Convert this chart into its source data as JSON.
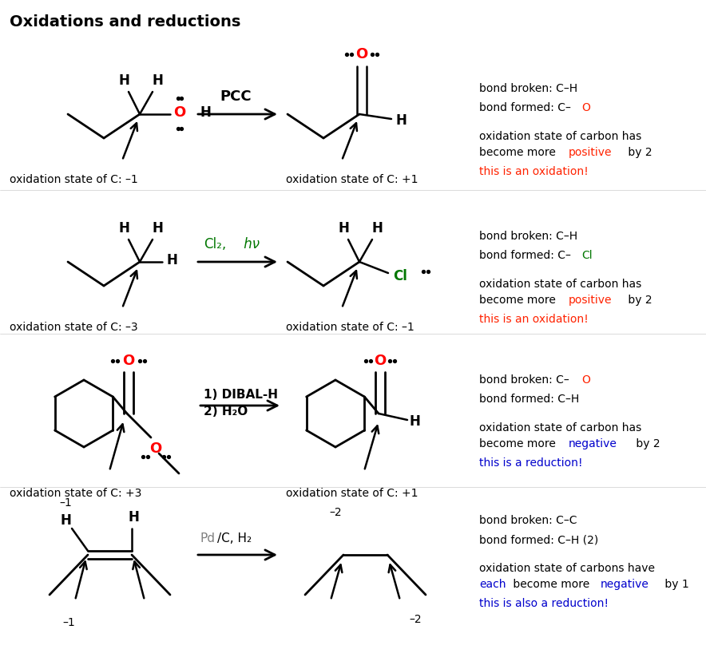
{
  "title": "Oxidations and reductions",
  "title_fontsize": 14,
  "title_fontweight": "bold",
  "background_color": "#ffffff",
  "text_color": "#000000",
  "red_color": "#ff2200",
  "green_color": "#007700",
  "blue_color": "#0000cc",
  "rows": [
    {
      "left_label": "oxidation state of C: –1",
      "right_label": "oxidation state of C: +1",
      "reagent1": "PCC",
      "reagent1_bold": true,
      "reagent1_color": "#000000",
      "bb_text": "bond broken: C–H",
      "bf_prefix": "bond formed: C–",
      "bf_suffix": "O",
      "bf_suffix_color": "#ff2200",
      "desc1": "oxidation state of carbon has",
      "desc2_prefix": "become more ",
      "desc2_word": "positive",
      "desc2_word_color": "#ff2200",
      "desc2_suffix": " by 2",
      "conclusion": "this is an oxidation!",
      "conclusion_color": "#ff2200"
    },
    {
      "left_label": "oxidation state of C: –3",
      "right_label": "oxidation state of C: –1",
      "reagent1": "Cl₂,",
      "reagent1_color": "#007700",
      "reagent1_bold": false,
      "reagent2": "hν",
      "reagent2_italic": true,
      "reagent2_color": "#007700",
      "bb_text": "bond broken: C–H",
      "bf_prefix": "bond formed: C–",
      "bf_suffix": "Cl",
      "bf_suffix_color": "#007700",
      "desc1": "oxidation state of carbon has",
      "desc2_prefix": "become more ",
      "desc2_word": "positive",
      "desc2_word_color": "#ff2200",
      "desc2_suffix": " by 2",
      "conclusion": "this is an oxidation!",
      "conclusion_color": "#ff2200"
    },
    {
      "left_label": "oxidation state of C: +3",
      "right_label": "oxidation state of C: +1",
      "reagent_line1": "1) DIBAL-H",
      "reagent_line2": "2) H₂O",
      "bb_prefix": "bond broken: C–",
      "bb_suffix": "O",
      "bb_suffix_color": "#ff2200",
      "bf_text": "bond formed: C–H",
      "desc1": "oxidation state of carbon has",
      "desc2_prefix": "become more ",
      "desc2_word": "negative",
      "desc2_word_color": "#0000cc",
      "desc2_suffix": " by 2",
      "conclusion": "this is a reduction!",
      "conclusion_color": "#0000cc"
    },
    {
      "left_minus1_top": "–1",
      "left_minus1_bottom": "–1",
      "right_minus2_top": "–2",
      "right_minus2_bottom": "–2",
      "reagent_pd": "Pd",
      "reagent_rest": "/C, H₂",
      "bb_text": "bond broken: C–C",
      "bf_text": "bond formed: C–H (2)",
      "desc1": "oxidation state of carbons have",
      "desc2_word1": "each",
      "desc2_word1_color": "#0000cc",
      "desc2_middle": " become more ",
      "desc2_word2": "negative",
      "desc2_word2_color": "#0000cc",
      "desc2_suffix": " by 1",
      "conclusion": "this is also a reduction!",
      "conclusion_color": "#0000cc"
    }
  ]
}
